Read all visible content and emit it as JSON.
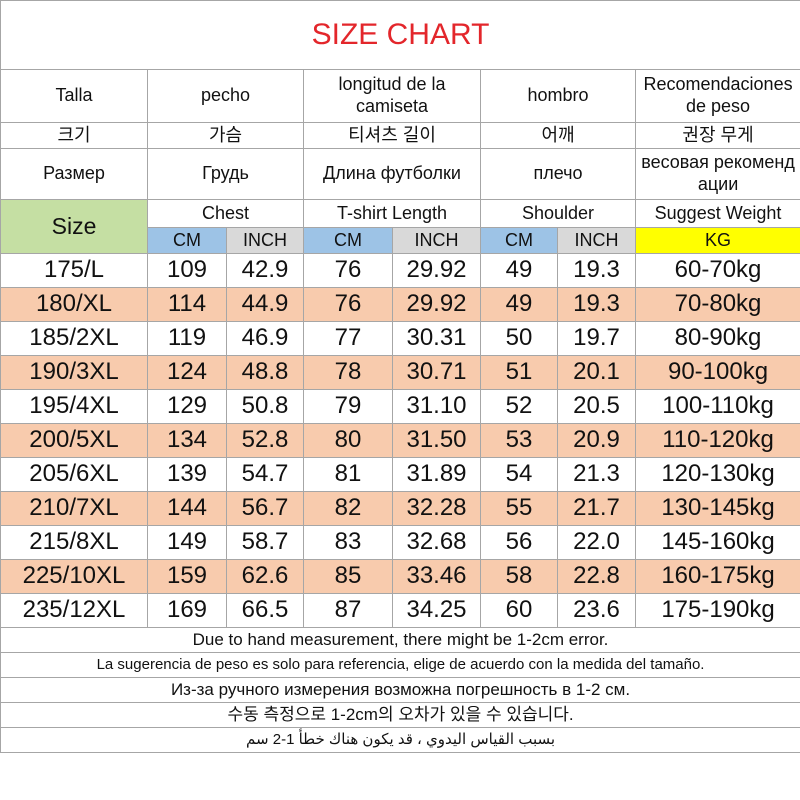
{
  "title": "SIZE CHART",
  "header": {
    "spanish": [
      "Talla",
      "pecho",
      "longitud de la camiseta",
      "hombro",
      "Recomendaciones de peso"
    ],
    "korean": [
      "크기",
      "가슴",
      "티셔츠 길이",
      "어깨",
      "권장 무게"
    ],
    "russian": [
      "Размер",
      "Грудь",
      "Длина футболки",
      "плечо",
      "весовая рекомендации"
    ],
    "english": [
      "Size",
      "Chest",
      "T-shirt Length",
      "Shoulder",
      "Suggest Weight"
    ],
    "units": [
      "CM",
      "INCH",
      "CM",
      "INCH",
      "CM",
      "INCH",
      "KG"
    ]
  },
  "table": {
    "rows": [
      [
        "175/L",
        "109",
        "42.9",
        "76",
        "29.92",
        "49",
        "19.3",
        "60-70kg"
      ],
      [
        "180/XL",
        "114",
        "44.9",
        "76",
        "29.92",
        "49",
        "19.3",
        "70-80kg"
      ],
      [
        "185/2XL",
        "119",
        "46.9",
        "77",
        "30.31",
        "50",
        "19.7",
        "80-90kg"
      ],
      [
        "190/3XL",
        "124",
        "48.8",
        "78",
        "30.71",
        "51",
        "20.1",
        "90-100kg"
      ],
      [
        "195/4XL",
        "129",
        "50.8",
        "79",
        "31.10",
        "52",
        "20.5",
        "100-110kg"
      ],
      [
        "200/5XL",
        "134",
        "52.8",
        "80",
        "31.50",
        "53",
        "20.9",
        "110-120kg"
      ],
      [
        "205/6XL",
        "139",
        "54.7",
        "81",
        "31.89",
        "54",
        "21.3",
        "120-130kg"
      ],
      [
        "210/7XL",
        "144",
        "56.7",
        "82",
        "32.28",
        "55",
        "21.7",
        "130-145kg"
      ],
      [
        "215/8XL",
        "149",
        "58.7",
        "83",
        "32.68",
        "56",
        "22.0",
        "145-160kg"
      ],
      [
        "225/10XL",
        "159",
        "62.6",
        "85",
        "33.46",
        "58",
        "22.8",
        "160-175kg"
      ],
      [
        "235/12XL",
        "169",
        "66.5",
        "87",
        "34.25",
        "60",
        "23.6",
        "175-190kg"
      ]
    ]
  },
  "notes": [
    "Due to hand measurement, there might be 1-2cm error.",
    "La sugerencia de peso es solo para referencia, elige de acuerdo con la medida del tamaño.",
    "Из-за ручного измерения возможна погрешность в 1-2 см.",
    "수동 측정으로 1-2cm의 오차가 있을 수 있습니다.",
    "بسبب القياس اليدوي ، قد يكون هناك خطأ 1-2 سم"
  ]
}
